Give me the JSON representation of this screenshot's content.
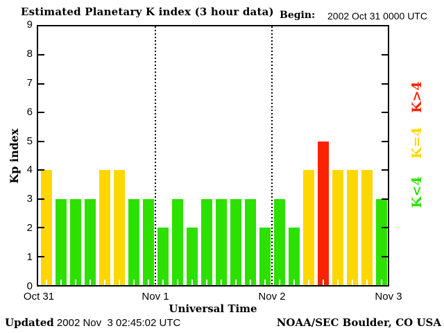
{
  "title": "Estimated Planetary K index (3 hour data)",
  "begin": {
    "label": "Begin:",
    "value": "2002 Oct 31 0000 UTC"
  },
  "axes": {
    "ylabel": "Kp index",
    "xlabel": "Universal Time",
    "yticks": [
      "0",
      "1",
      "2",
      "3",
      "4",
      "5",
      "6",
      "7",
      "8",
      "9"
    ],
    "xticks": [
      "Oct 31",
      "Nov 1",
      "Nov 2",
      "Nov 3"
    ]
  },
  "legend": [
    {
      "label": "K>4",
      "color": "#F82300"
    },
    {
      "label": "K=4",
      "color": "#FFD700"
    },
    {
      "label": "K<4",
      "color": "#2DE000"
    }
  ],
  "colors": {
    "green": "#2DE000",
    "yellow": "#FFD700",
    "red": "#F82300",
    "frame": "#000000"
  },
  "footer": {
    "updated_label": "Updated",
    "updated_value": " 2002 Nov  3 02:45:02 UTC",
    "credit": "NOAA/SEC Boulder, CO USA"
  },
  "chart_data": {
    "type": "bar",
    "title": "Estimated Planetary K index (3 hour data)",
    "xlabel": "Universal Time",
    "ylabel": "Kp index",
    "ylim": [
      0,
      9
    ],
    "interval_hours": 3,
    "day_labels": [
      "Oct 31",
      "Nov 1",
      "Nov 2",
      "Nov 3"
    ],
    "values": [
      4,
      3,
      3,
      3,
      4,
      4,
      3,
      3,
      2,
      3,
      2,
      3,
      3,
      3,
      3,
      2,
      3,
      2,
      4,
      5,
      4,
      4,
      4,
      3
    ],
    "color_rule": {
      "below_4": "green",
      "equal_4": "yellow",
      "above_4": "red"
    },
    "grid": "dotted vertical lines at day boundaries",
    "legend_position": "right margin, rotated"
  }
}
